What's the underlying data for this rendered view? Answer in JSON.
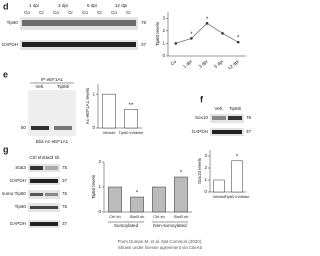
{
  "panels": {
    "d": {
      "label": "d",
      "lanes": [
        "1 dpi",
        "3 dpi",
        "5 dpi",
        "12 dpi"
      ],
      "conditions": [
        "Co",
        "Cr",
        "Co",
        "Cr",
        "Co",
        "Cr",
        "Co",
        "Cr"
      ],
      "rows": [
        "Tip60",
        "GAPDH"
      ],
      "markers": [
        "75",
        "37"
      ]
    },
    "e": {
      "label": "e",
      "ip": "IP eEF1A1",
      "lanes": [
        "Veh.",
        "Tip60i"
      ],
      "marker": "50",
      "blot": "Blot Ac-eEF1A1"
    },
    "f": {
      "label": "f",
      "lanes": [
        "Veh.",
        "Tip60i"
      ],
      "rows": [
        "Sox10",
        "GAPDH"
      ],
      "markers": [
        "75",
        "37"
      ]
    },
    "g": {
      "label": "g",
      "lanes": [
        "Ctrl sh",
        "Stat3 sh"
      ],
      "rows": [
        "Stat3",
        "GAPDH",
        "sumo-Tip60",
        "Tip60",
        "GAPDH"
      ],
      "markers": [
        "75",
        "37",
        "75",
        "75",
        "37"
      ]
    }
  },
  "chart_data": [
    {
      "type": "line",
      "y_label": "Tip60 levels",
      "categories": [
        "Co",
        "1 dpi",
        "3 dpi",
        "5 dpi",
        "12 dpi"
      ],
      "values": [
        1,
        1.4,
        2.6,
        1.8,
        1.1
      ],
      "color": "#777777",
      "ylim": [
        0,
        3.5
      ],
      "yticks": [
        0,
        1,
        2,
        3
      ],
      "annotations": [
        "*",
        "*",
        "*"
      ]
    },
    {
      "type": "bar",
      "y_label": "Ac-eEF1A1 levels",
      "categories": [
        "Vehicle",
        "Tip60 inhibitor"
      ],
      "values": [
        1,
        0.55
      ],
      "color": "#ffffff",
      "ylim": [
        0,
        1.3
      ],
      "yticks": [
        0,
        1
      ],
      "annotations": [
        "**"
      ]
    },
    {
      "type": "bar",
      "y_label": "Sox10 levels",
      "categories": [
        "Vehicle",
        "Tip60 inhibitor"
      ],
      "values": [
        1,
        2.6
      ],
      "color": "#ffffff",
      "ylim": [
        0,
        3.5
      ],
      "yticks": [
        0,
        1,
        2,
        3
      ],
      "annotations": [
        "*"
      ]
    },
    {
      "type": "bar",
      "y_label": "Tip60 levels",
      "categories": [
        "Ctrl sh",
        "Stat3 sh",
        "Ctrl sh",
        "Stat3 sh"
      ],
      "groups": [
        "Sumoylated",
        "Non-sumoylated"
      ],
      "values": [
        1,
        0.6,
        1,
        1.4
      ],
      "color": "#bbbbbb",
      "ylim": [
        0,
        2
      ],
      "yticks": [
        0,
        1,
        2
      ],
      "annotations": [
        "*",
        "*"
      ]
    }
  ],
  "credit": [
    "From Duman M. et al. Nat Commun (2020).",
    "Shown under license agreement via CiteAb"
  ]
}
